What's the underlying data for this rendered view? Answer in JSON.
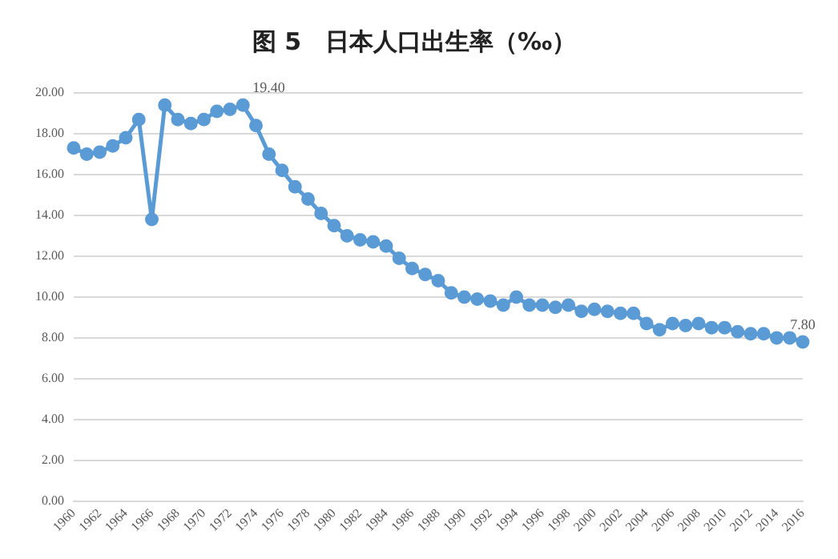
{
  "chart_data": {
    "type": "line",
    "title": "图 5　日本人口出生率（‰）",
    "categories": [
      "1960",
      null,
      "1962",
      null,
      "1964",
      null,
      "1966",
      null,
      "1968",
      null,
      "1970",
      null,
      "1972",
      null,
      "1974",
      null,
      "1976",
      null,
      "1978",
      null,
      "1980",
      null,
      "1982",
      null,
      "1984",
      null,
      "1986",
      null,
      "1988",
      null,
      "1990",
      null,
      "1992",
      null,
      "1994",
      null,
      "1996",
      null,
      "1998",
      null,
      "2000",
      null,
      "2002",
      null,
      "2004",
      null,
      "2006",
      null,
      "2008",
      null,
      "2010",
      null,
      "2012",
      null,
      "2014",
      null,
      "2016"
    ],
    "series": [
      {
        "color": "#5b9bd5",
        "values": [
          17.3,
          17.0,
          17.1,
          17.4,
          17.8,
          18.7,
          13.8,
          19.4,
          18.7,
          18.5,
          18.7,
          19.1,
          19.2,
          19.4,
          18.4,
          17.0,
          16.2,
          15.4,
          14.8,
          14.1,
          13.5,
          13.0,
          12.8,
          12.7,
          12.5,
          11.9,
          11.4,
          11.1,
          10.8,
          10.2,
          10.0,
          9.9,
          9.8,
          9.6,
          10.0,
          9.6,
          9.6,
          9.5,
          9.6,
          9.3,
          9.4,
          9.3,
          9.2,
          9.2,
          8.7,
          8.4,
          8.7,
          8.6,
          8.7,
          8.5,
          8.5,
          8.3,
          8.2,
          8.2,
          8.0,
          8.0,
          7.8
        ],
        "value_labels": [
          null,
          null,
          null,
          null,
          null,
          null,
          null,
          null,
          null,
          null,
          null,
          null,
          null,
          "19.40",
          null,
          null,
          null,
          null,
          null,
          null,
          null,
          null,
          null,
          null,
          null,
          null,
          null,
          null,
          null,
          null,
          null,
          null,
          null,
          null,
          null,
          null,
          null,
          null,
          null,
          null,
          null,
          null,
          null,
          null,
          null,
          null,
          null,
          null,
          null,
          null,
          null,
          null,
          null,
          null,
          null,
          null,
          "7.80"
        ]
      }
    ],
    "ylim": [
      0,
      20
    ],
    "yticks": [
      {
        "value": 0,
        "label": "0.00"
      },
      {
        "value": 2,
        "label": "2.00"
      },
      {
        "value": 4,
        "label": "4.00"
      },
      {
        "value": 6,
        "label": "6.00"
      },
      {
        "value": 8,
        "label": "8.00"
      },
      {
        "value": 10,
        "label": "10.00"
      },
      {
        "value": 12,
        "label": "12.00"
      },
      {
        "value": 14,
        "label": "14.00"
      },
      {
        "value": 16,
        "label": "16.00"
      },
      {
        "value": 18,
        "label": "18.00"
      },
      {
        "value": 20,
        "label": "20.00"
      }
    ],
    "grid": "y",
    "legend": false,
    "marker": "circle",
    "line_style": "solid"
  }
}
